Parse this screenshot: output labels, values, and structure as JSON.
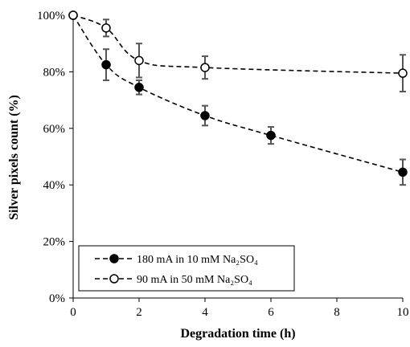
{
  "chart_data": {
    "type": "line",
    "title": "",
    "xlabel": "Degradation time (h)",
    "ylabel": "Silver pixels count (%)",
    "xlim": [
      0,
      10
    ],
    "ylim": [
      0,
      100
    ],
    "xticks": [
      0,
      2,
      4,
      6,
      8,
      10
    ],
    "xtick_labels": [
      "0",
      "2",
      "4",
      "6",
      "8",
      "10"
    ],
    "yticks": [
      0,
      20,
      40,
      60,
      80,
      100
    ],
    "ytick_labels": [
      "0%",
      "20%",
      "40%",
      "60%",
      "80%",
      "100%"
    ],
    "grid": false,
    "legend_position": "bottom-left",
    "series": [
      {
        "name": "180 mA in 10 mM Na₂SO₄",
        "marker": "filled-circle",
        "line_style": "dashed",
        "color": "#000000",
        "x": [
          0,
          1,
          2,
          4,
          6,
          10
        ],
        "y": [
          100,
          82.5,
          74.5,
          64.5,
          57.5,
          44.5
        ],
        "error": [
          0,
          5.5,
          2.5,
          3.5,
          3,
          4.5
        ]
      },
      {
        "name": "90 mA in 50 mM Na₂SO₄",
        "marker": "open-circle",
        "line_style": "dashed",
        "color": "#000000",
        "x": [
          0,
          1,
          2,
          4,
          10
        ],
        "y": [
          100,
          95.5,
          84,
          81.5,
          79.5
        ],
        "error": [
          0,
          3,
          6,
          4,
          6.5
        ]
      }
    ]
  }
}
